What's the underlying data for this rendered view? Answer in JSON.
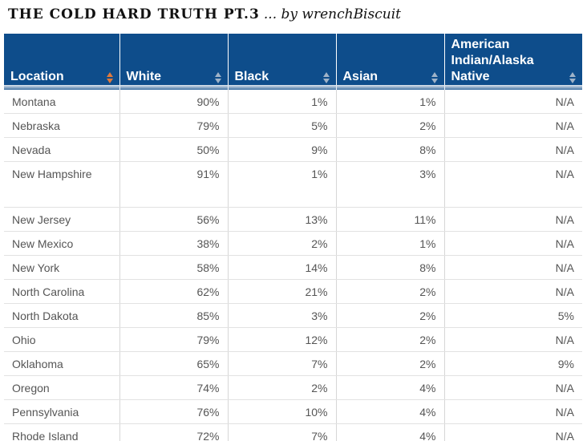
{
  "title": {
    "main": "THE COLD HARD TRUTH PT.3",
    "byline": "... by wrenchBiscuit"
  },
  "table": {
    "columns": [
      "Location",
      "White",
      "Black",
      "Asian",
      "American Indian/Alaska Native"
    ],
    "sorted_column": "Location",
    "rows": [
      [
        "Montana",
        "90%",
        "1%",
        "1%",
        "N/A"
      ],
      [
        "Nebraska",
        "79%",
        "5%",
        "2%",
        "N/A"
      ],
      [
        "Nevada",
        "50%",
        "9%",
        "8%",
        "N/A"
      ],
      [
        "New Hampshire",
        "91%",
        "1%",
        "3%",
        "N/A"
      ],
      [
        "New Jersey",
        "56%",
        "13%",
        "11%",
        "N/A"
      ],
      [
        "New Mexico",
        "38%",
        "2%",
        "1%",
        "N/A"
      ],
      [
        "New York",
        "58%",
        "14%",
        "8%",
        "N/A"
      ],
      [
        "North Carolina",
        "62%",
        "21%",
        "2%",
        "N/A"
      ],
      [
        "North Dakota",
        "85%",
        "3%",
        "2%",
        "5%"
      ],
      [
        "Ohio",
        "79%",
        "12%",
        "2%",
        "N/A"
      ],
      [
        "Oklahoma",
        "65%",
        "7%",
        "2%",
        "9%"
      ],
      [
        "Oregon",
        "74%",
        "2%",
        "4%",
        "N/A"
      ],
      [
        "Pennsylvania",
        "76%",
        "10%",
        "4%",
        "N/A"
      ],
      [
        "Rhode Island",
        "72%",
        "7%",
        "4%",
        "N/A"
      ]
    ]
  },
  "colors": {
    "header_bg": "#0e4d8b",
    "header_text": "#ffffff",
    "sort_active": "#e07a3c",
    "sort_inactive": "#9fb3c8",
    "cell_text": "#555555"
  }
}
